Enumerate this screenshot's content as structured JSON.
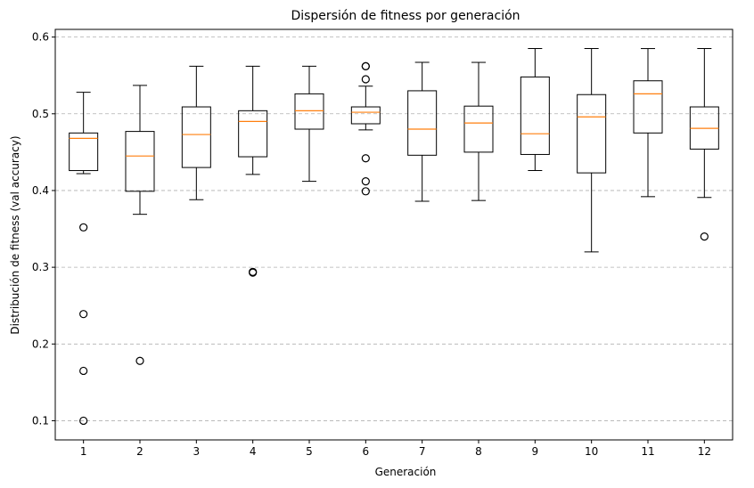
{
  "chart_data": {
    "type": "box",
    "title": "Dispersión de fitness por generación",
    "xlabel": "Generación",
    "ylabel": "Distribución de fitness (val accuracy)",
    "ylim": [
      0.075,
      0.61
    ],
    "yticks": [
      0.1,
      0.2,
      0.3,
      0.4,
      0.5,
      0.6
    ],
    "ytick_labels": [
      "0.1",
      "0.2",
      "0.3",
      "0.4",
      "0.5",
      "0.6"
    ],
    "grid": "y-dashed",
    "colors": {
      "median": "#ff7f0e",
      "box": "#000000",
      "grid": "#b0b0b0"
    },
    "categories": [
      "1",
      "2",
      "3",
      "4",
      "5",
      "6",
      "7",
      "8",
      "9",
      "10",
      "11",
      "12"
    ],
    "boxes": [
      {
        "whislo": 0.422,
        "q1": 0.426,
        "med": 0.468,
        "q3": 0.475,
        "whishi": 0.528,
        "fliers": [
          0.352,
          0.239,
          0.165,
          0.1
        ]
      },
      {
        "whislo": 0.369,
        "q1": 0.399,
        "med": 0.445,
        "q3": 0.477,
        "whishi": 0.537,
        "fliers": [
          0.178
        ]
      },
      {
        "whislo": 0.388,
        "q1": 0.43,
        "med": 0.473,
        "q3": 0.509,
        "whishi": 0.562,
        "fliers": []
      },
      {
        "whislo": 0.421,
        "q1": 0.444,
        "med": 0.49,
        "q3": 0.504,
        "whishi": 0.562,
        "fliers": [
          0.294,
          0.293
        ]
      },
      {
        "whislo": 0.412,
        "q1": 0.48,
        "med": 0.504,
        "q3": 0.526,
        "whishi": 0.562,
        "fliers": []
      },
      {
        "whislo": 0.479,
        "q1": 0.487,
        "med": 0.502,
        "q3": 0.509,
        "whishi": 0.536,
        "fliers": [
          0.562,
          0.562,
          0.545,
          0.442,
          0.412,
          0.399
        ]
      },
      {
        "whislo": 0.386,
        "q1": 0.446,
        "med": 0.48,
        "q3": 0.53,
        "whishi": 0.567,
        "fliers": []
      },
      {
        "whislo": 0.387,
        "q1": 0.45,
        "med": 0.488,
        "q3": 0.51,
        "whishi": 0.567,
        "fliers": []
      },
      {
        "whislo": 0.426,
        "q1": 0.447,
        "med": 0.474,
        "q3": 0.548,
        "whishi": 0.585,
        "fliers": []
      },
      {
        "whislo": 0.32,
        "q1": 0.423,
        "med": 0.496,
        "q3": 0.525,
        "whishi": 0.585,
        "fliers": []
      },
      {
        "whislo": 0.392,
        "q1": 0.475,
        "med": 0.526,
        "q3": 0.543,
        "whishi": 0.585,
        "fliers": []
      },
      {
        "whislo": 0.391,
        "q1": 0.454,
        "med": 0.481,
        "q3": 0.509,
        "whishi": 0.585,
        "fliers": [
          0.34
        ]
      }
    ]
  }
}
